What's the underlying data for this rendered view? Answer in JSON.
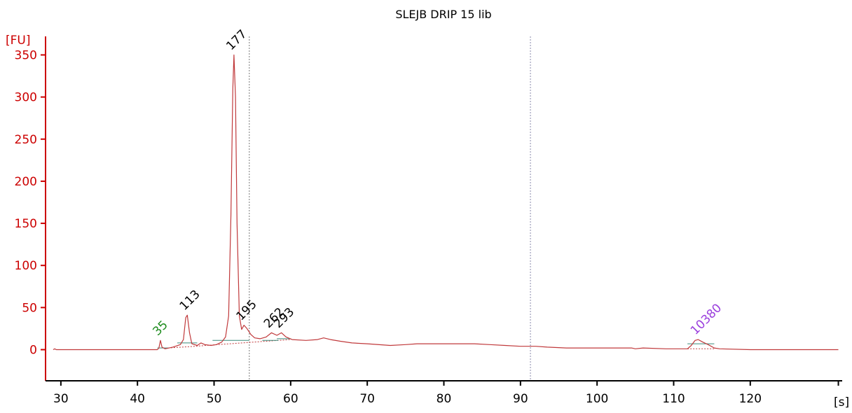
{
  "chart_data": {
    "type": "line",
    "title": "SLEJB DRIP 15 lib",
    "xlabel": "[s]",
    "ylabel": "[FU]",
    "xlim": [
      28,
      132
    ],
    "ylim": [
      -37,
      372
    ],
    "x_ticks": [
      "30",
      "40",
      "50",
      "60",
      "70",
      "80",
      "90",
      "100",
      "110",
      "120"
    ],
    "y_ticks": [
      "0",
      "50",
      "100",
      "150",
      "200",
      "250",
      "300",
      "350"
    ],
    "grid": false,
    "colors": {
      "trace": "#c0393b",
      "y_axis": "#cc0000",
      "x_axis": "#000000",
      "marker_line": "#777777",
      "upper_marker_line": "#8888aa",
      "baseline": "#3a8a7a",
      "label_default": "#000000",
      "label_lower_marker": "#1e8c1e",
      "label_upper_marker": "#9b3fdd"
    },
    "marker_lines_x": [
      54.6,
      91.3
    ],
    "series": [
      {
        "points": [
          [
            29,
            0
          ],
          [
            29.2,
            1
          ],
          [
            29.4,
            0
          ],
          [
            42.6,
            0
          ],
          [
            42.8,
            2
          ],
          [
            43.0,
            11
          ],
          [
            43.2,
            3
          ],
          [
            43.6,
            1
          ],
          [
            44.6,
            3
          ],
          [
            45.6,
            6
          ],
          [
            46.0,
            12
          ],
          [
            46.3,
            38
          ],
          [
            46.5,
            41
          ],
          [
            46.8,
            20
          ],
          [
            47.1,
            7
          ],
          [
            47.8,
            5
          ],
          [
            48.3,
            8
          ],
          [
            48.8,
            6
          ],
          [
            49.6,
            5
          ],
          [
            50.3,
            6
          ],
          [
            51.0,
            9
          ],
          [
            51.5,
            15
          ],
          [
            51.9,
            40
          ],
          [
            52.2,
            160
          ],
          [
            52.45,
            310
          ],
          [
            52.6,
            350
          ],
          [
            52.8,
            300
          ],
          [
            53.0,
            150
          ],
          [
            53.3,
            40
          ],
          [
            53.6,
            24
          ],
          [
            53.9,
            29
          ],
          [
            54.3,
            25
          ],
          [
            54.8,
            18
          ],
          [
            55.3,
            14
          ],
          [
            56.0,
            13
          ],
          [
            56.8,
            15
          ],
          [
            57.5,
            20
          ],
          [
            58.2,
            17
          ],
          [
            58.8,
            20
          ],
          [
            59.4,
            15
          ],
          [
            60.2,
            12
          ],
          [
            62.0,
            11
          ],
          [
            63.5,
            12
          ],
          [
            64.3,
            14
          ],
          [
            65.2,
            12
          ],
          [
            66.5,
            10
          ],
          [
            68.0,
            8
          ],
          [
            70.0,
            7
          ],
          [
            73.0,
            5
          ],
          [
            75.0,
            6
          ],
          [
            76.5,
            7
          ],
          [
            80.0,
            7
          ],
          [
            84.0,
            7
          ],
          [
            86.0,
            6
          ],
          [
            88.0,
            5
          ],
          [
            90.0,
            4
          ],
          [
            92.0,
            4
          ],
          [
            93.5,
            3
          ],
          [
            96.0,
            2
          ],
          [
            100.0,
            2
          ],
          [
            104.5,
            2
          ],
          [
            105.0,
            1
          ],
          [
            106.0,
            2
          ],
          [
            109.0,
            1
          ],
          [
            111.8,
            1
          ],
          [
            112.3,
            5
          ],
          [
            112.8,
            11
          ],
          [
            113.2,
            12
          ],
          [
            113.8,
            9
          ],
          [
            114.5,
            6
          ],
          [
            115.3,
            2
          ],
          [
            116.0,
            1
          ],
          [
            120.0,
            0
          ],
          [
            131.5,
            0
          ]
        ]
      }
    ],
    "peaks": [
      {
        "label": "35",
        "x": 43.0,
        "y": 11,
        "color": "label_lower_marker"
      },
      {
        "label": "113",
        "x": 46.5,
        "y": 41,
        "color": "label_default"
      },
      {
        "label": "177",
        "x": 52.6,
        "y": 350,
        "color": "label_default"
      },
      {
        "label": "195",
        "x": 53.9,
        "y": 29,
        "color": "label_default"
      },
      {
        "label": "262",
        "x": 57.5,
        "y": 20,
        "color": "label_default"
      },
      {
        "label": "293",
        "x": 58.8,
        "y": 20,
        "color": "label_default"
      },
      {
        "label": "10380",
        "x": 113.2,
        "y": 12,
        "color": "label_upper_marker"
      }
    ],
    "integration_baselines": [
      {
        "x1": 42.6,
        "x2": 44.0,
        "y": 2
      },
      {
        "x1": 45.2,
        "x2": 47.8,
        "y": 8
      },
      {
        "x1": 49.8,
        "x2": 54.6,
        "y": 11
      },
      {
        "x1": 56.3,
        "x2": 58.4,
        "y": 11
      },
      {
        "x1": 58.2,
        "x2": 60.0,
        "y": 13
      },
      {
        "x1": 111.8,
        "x2": 115.3,
        "y": 7
      }
    ]
  }
}
